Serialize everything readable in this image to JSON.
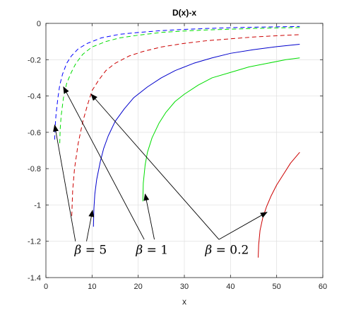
{
  "chart_data": {
    "type": "line",
    "title": "D(x)-x",
    "xlabel": "x",
    "ylabel": "",
    "xlim": [
      0,
      60
    ],
    "ylim": [
      -1.4,
      0
    ],
    "xticks": [
      "0",
      "10",
      "20",
      "30",
      "40",
      "50",
      "60"
    ],
    "yticks": [
      "0",
      "-0.2",
      "-0.4",
      "-0.6",
      "-0.8",
      "-1",
      "-1.2",
      "-1.4"
    ],
    "grid": true,
    "box": true,
    "series": [
      {
        "color": "#0000ff",
        "dash": "dashed",
        "points": [
          [
            1.9,
            -0.64
          ],
          [
            2.0,
            -0.57
          ],
          [
            2.2,
            -0.5
          ],
          [
            2.6,
            -0.41
          ],
          [
            3.0,
            -0.34
          ],
          [
            3.6,
            -0.28
          ],
          [
            4.5,
            -0.22
          ],
          [
            5.5,
            -0.18
          ],
          [
            7.0,
            -0.14
          ],
          [
            9.0,
            -0.11
          ],
          [
            12.0,
            -0.08
          ],
          [
            16.0,
            -0.06
          ],
          [
            20.0,
            -0.05
          ],
          [
            25.0,
            -0.04
          ],
          [
            30.0,
            -0.033
          ],
          [
            35.0,
            -0.028
          ],
          [
            40.0,
            -0.024
          ],
          [
            45.0,
            -0.021
          ],
          [
            50.0,
            -0.019
          ],
          [
            55.0,
            -0.017
          ]
        ]
      },
      {
        "color": "#00dd00",
        "dash": "dashed",
        "points": [
          [
            3.0,
            -0.66
          ],
          [
            3.1,
            -0.58
          ],
          [
            3.3,
            -0.51
          ],
          [
            3.8,
            -0.41
          ],
          [
            4.5,
            -0.33
          ],
          [
            5.5,
            -0.27
          ],
          [
            6.5,
            -0.22
          ],
          [
            8.0,
            -0.17
          ],
          [
            10.0,
            -0.13
          ],
          [
            13.0,
            -0.1
          ],
          [
            16.0,
            -0.08
          ],
          [
            20.0,
            -0.065
          ],
          [
            25.0,
            -0.05
          ],
          [
            30.0,
            -0.042
          ],
          [
            35.0,
            -0.036
          ],
          [
            40.0,
            -0.032
          ],
          [
            45.0,
            -0.028
          ],
          [
            50.0,
            -0.025
          ],
          [
            55.0,
            -0.023
          ]
        ]
      },
      {
        "color": "#cc0000",
        "dash": "dashed",
        "points": [
          [
            5.6,
            -1.06
          ],
          [
            5.8,
            -0.92
          ],
          [
            6.2,
            -0.8
          ],
          [
            7.0,
            -0.66
          ],
          [
            8.0,
            -0.54
          ],
          [
            9.0,
            -0.45
          ],
          [
            10.0,
            -0.37
          ],
          [
            11.5,
            -0.31
          ],
          [
            13.0,
            -0.26
          ],
          [
            15.0,
            -0.22
          ],
          [
            18.0,
            -0.18
          ],
          [
            21.0,
            -0.155
          ],
          [
            25.0,
            -0.13
          ],
          [
            30.0,
            -0.11
          ],
          [
            35.0,
            -0.095
          ],
          [
            40.0,
            -0.085
          ],
          [
            45.0,
            -0.075
          ],
          [
            50.0,
            -0.068
          ],
          [
            55.0,
            -0.062
          ]
        ]
      },
      {
        "color": "#0000cc",
        "dash": "solid",
        "points": [
          [
            10.3,
            -1.12
          ],
          [
            10.4,
            -1.02
          ],
          [
            10.6,
            -0.94
          ],
          [
            11.0,
            -0.86
          ],
          [
            11.8,
            -0.76
          ],
          [
            12.5,
            -0.69
          ],
          [
            13.5,
            -0.62
          ],
          [
            15.0,
            -0.54
          ],
          [
            17.0,
            -0.47
          ],
          [
            19.0,
            -0.41
          ],
          [
            22.0,
            -0.35
          ],
          [
            25.0,
            -0.3
          ],
          [
            28.0,
            -0.26
          ],
          [
            32.0,
            -0.22
          ],
          [
            36.0,
            -0.19
          ],
          [
            40.0,
            -0.165
          ],
          [
            45.0,
            -0.145
          ],
          [
            50.0,
            -0.128
          ],
          [
            55.0,
            -0.115
          ]
        ]
      },
      {
        "color": "#00dd00",
        "dash": "solid",
        "points": [
          [
            21.0,
            -0.98
          ],
          [
            21.1,
            -0.88
          ],
          [
            21.5,
            -0.78
          ],
          [
            22.0,
            -0.71
          ],
          [
            23.0,
            -0.63
          ],
          [
            24.5,
            -0.55
          ],
          [
            26.0,
            -0.49
          ],
          [
            28.0,
            -0.43
          ],
          [
            30.0,
            -0.39
          ],
          [
            33.0,
            -0.34
          ],
          [
            36.0,
            -0.3
          ],
          [
            40.0,
            -0.27
          ],
          [
            44.0,
            -0.24
          ],
          [
            48.0,
            -0.22
          ],
          [
            52.0,
            -0.2
          ],
          [
            55.0,
            -0.19
          ]
        ]
      },
      {
        "color": "#cc0000",
        "dash": "solid",
        "points": [
          [
            46.0,
            -1.29
          ],
          [
            46.1,
            -1.22
          ],
          [
            46.4,
            -1.14
          ],
          [
            47.0,
            -1.07
          ],
          [
            47.8,
            -1.01
          ],
          [
            48.8,
            -0.95
          ],
          [
            50.0,
            -0.89
          ],
          [
            51.5,
            -0.83
          ],
          [
            53.0,
            -0.77
          ],
          [
            55.0,
            -0.71
          ]
        ]
      }
    ],
    "annotations": [
      {
        "label_prefix": "β",
        "label_rest": " = 5",
        "text_at": [
          6.2,
          -1.27
        ],
        "arrows": [
          {
            "from": [
              6.4,
              -1.2
            ],
            "to": [
              1.9,
              -0.56
            ]
          },
          {
            "from": [
              8.8,
              -1.2
            ],
            "to": [
              10.1,
              -1.03
            ]
          }
        ]
      },
      {
        "label_prefix": "β",
        "label_rest": " = 1",
        "text_at": [
          19.5,
          -1.27
        ],
        "arrows": [
          {
            "from": [
              21.3,
              -1.19
            ],
            "to": [
              3.8,
              -0.35
            ]
          },
          {
            "from": [
              23.5,
              -1.19
            ],
            "to": [
              21.5,
              -0.94
            ]
          }
        ]
      },
      {
        "label_prefix": "β",
        "label_rest": " = 0.2",
        "text_at": [
          34.5,
          -1.27
        ],
        "arrows": [
          {
            "from": [
              37.5,
              -1.19
            ],
            "to": [
              9.8,
              -0.39
            ]
          },
          {
            "from": [
              37.5,
              -1.19
            ],
            "to": [
              47.9,
              -1.04
            ]
          }
        ]
      }
    ]
  }
}
